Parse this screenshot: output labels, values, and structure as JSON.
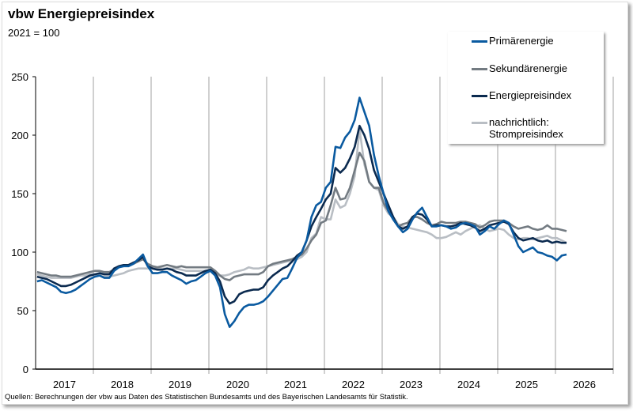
{
  "title": "vbw Energiepreisindex",
  "subtitle": "2021 = 100",
  "source": "Quellen: Berechnungen der vbw aus Daten des Statistischen Bundesamts und des Bayerischen Landesamts für Statistik.",
  "chart_data": {
    "type": "line",
    "title": "vbw Energiepreisindex",
    "subtitle": "2021 = 100",
    "x_start": "2017-01",
    "x_frequency": "monthly",
    "x_tick_labels": [
      "2017",
      "2018",
      "2019",
      "2020",
      "2021",
      "2022",
      "2023",
      "2024",
      "2025",
      "2026"
    ],
    "y_ticks": [
      0,
      50,
      100,
      150,
      200,
      250
    ],
    "ylim": [
      0,
      250
    ],
    "grid": "vertical year separators only",
    "legend": "top-right",
    "series": [
      {
        "name": "Primärenergie",
        "color": "#0a5aa0",
        "values": [
          75,
          76,
          74,
          72,
          70,
          66,
          65,
          66,
          68,
          71,
          74,
          77,
          79,
          80,
          78,
          78,
          84,
          87,
          88,
          88,
          90,
          94,
          98,
          88,
          82,
          82,
          83,
          83,
          80,
          78,
          76,
          73,
          75,
          76,
          79,
          82,
          84,
          80,
          70,
          47,
          36,
          41,
          48,
          53,
          55,
          55,
          56,
          58,
          62,
          67,
          72,
          77,
          78,
          86,
          95,
          100,
          110,
          130,
          140,
          143,
          155,
          160,
          190,
          189,
          198,
          203,
          213,
          232,
          220,
          208,
          183,
          165,
          150,
          135,
          128,
          122,
          117,
          120,
          128,
          134,
          138,
          130,
          122,
          122,
          123,
          122,
          120,
          121,
          124,
          125,
          124,
          122,
          115,
          118,
          122,
          120,
          124,
          127,
          125,
          115,
          105,
          100,
          102,
          104,
          100,
          99,
          97,
          96,
          93,
          97,
          98
        ]
      },
      {
        "name": "Sekundärenergie",
        "color": "#737b82",
        "values": [
          83,
          82,
          81,
          80,
          80,
          79,
          79,
          79,
          80,
          81,
          82,
          83,
          84,
          84,
          83,
          83,
          85,
          87,
          89,
          89,
          90,
          92,
          94,
          90,
          88,
          87,
          88,
          89,
          88,
          87,
          88,
          87,
          87,
          87,
          87,
          87,
          87,
          84,
          80,
          77,
          76,
          79,
          80,
          81,
          81,
          81,
          81,
          83,
          88,
          90,
          91,
          92,
          93,
          94,
          96,
          98,
          103,
          110,
          115,
          125,
          127,
          140,
          155,
          145,
          146,
          155,
          170,
          185,
          178,
          160,
          155,
          155,
          142,
          135,
          128,
          122,
          124,
          125,
          130,
          130,
          128,
          125,
          123,
          124,
          126,
          125,
          125,
          125,
          126,
          126,
          125,
          124,
          121,
          123,
          126,
          127,
          127,
          127,
          125,
          122,
          120,
          121,
          122,
          120,
          119,
          120,
          123,
          120,
          120,
          119,
          118
        ]
      },
      {
        "name": "Energiepreisindex",
        "color": "#0b2a4f",
        "values": [
          79,
          78,
          77,
          75,
          73,
          71,
          71,
          72,
          74,
          76,
          78,
          80,
          81,
          82,
          81,
          81,
          86,
          88,
          89,
          89,
          91,
          93,
          96,
          88,
          86,
          85,
          85,
          86,
          85,
          83,
          82,
          80,
          80,
          80,
          82,
          84,
          85,
          82,
          75,
          62,
          56,
          58,
          64,
          66,
          67,
          68,
          68,
          70,
          76,
          80,
          83,
          86,
          88,
          92,
          97,
          100,
          110,
          122,
          130,
          137,
          145,
          150,
          172,
          168,
          172,
          180,
          190,
          208,
          200,
          188,
          170,
          160,
          150,
          140,
          130,
          122,
          120,
          122,
          130,
          133,
          132,
          128,
          122,
          123,
          123,
          122,
          122,
          123,
          125,
          124,
          123,
          121,
          118,
          120,
          123,
          124,
          125,
          126,
          124,
          117,
          112,
          110,
          111,
          112,
          110,
          109,
          110,
          108,
          109,
          108,
          108
        ]
      },
      {
        "name": "nachrichtlich: Strompreisindex",
        "color": "#b9bec4",
        "values": [
          81,
          80,
          79,
          78,
          78,
          78,
          78,
          78,
          79,
          80,
          80,
          81,
          81,
          80,
          79,
          79,
          80,
          81,
          82,
          84,
          85,
          86,
          86,
          86,
          86,
          86,
          86,
          86,
          86,
          86,
          85,
          84,
          84,
          84,
          84,
          84,
          84,
          81,
          80,
          80,
          81,
          83,
          84,
          85,
          87,
          86,
          86,
          87,
          88,
          89,
          90,
          91,
          92,
          93,
          94,
          96,
          100,
          112,
          116,
          130,
          128,
          128,
          145,
          138,
          140,
          150,
          165,
          205,
          175,
          160,
          155,
          153,
          140,
          133,
          130,
          124,
          122,
          121,
          120,
          119,
          118,
          117,
          115,
          112,
          112,
          113,
          115,
          117,
          115,
          118,
          120,
          122,
          123,
          120,
          118,
          119,
          120,
          119,
          115,
          112,
          111,
          112,
          112,
          111,
          112,
          113,
          114,
          112,
          112,
          110,
          108
        ]
      }
    ]
  },
  "legend": {
    "items": [
      "Primärenergie",
      "Sekundärenergie",
      "Energiepreisindex"
    ],
    "strom_line1": "nachrichtlich:",
    "strom_line2": "Strompreisindex"
  }
}
